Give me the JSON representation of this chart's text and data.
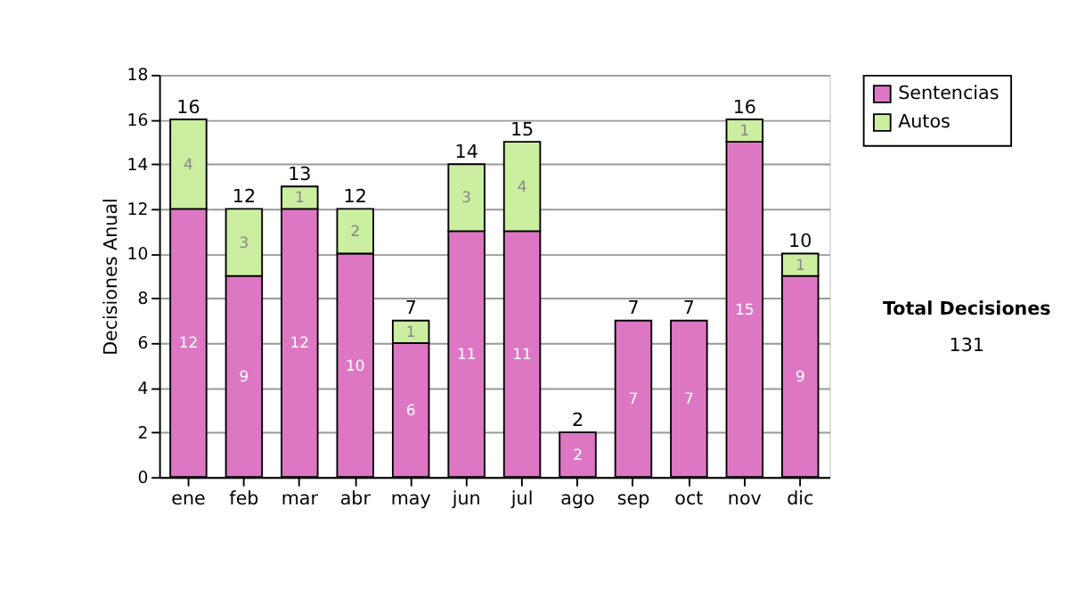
{
  "chart_data": {
    "type": "bar",
    "stacked": true,
    "ylabel": "Decisiones Anual",
    "categories": [
      "ene",
      "feb",
      "mar",
      "abr",
      "may",
      "jun",
      "jul",
      "ago",
      "sep",
      "oct",
      "nov",
      "dic"
    ],
    "series": [
      {
        "name": "Sentencias",
        "color": "#dd77c4",
        "values": [
          12,
          9,
          12,
          10,
          6,
          11,
          11,
          2,
          7,
          7,
          15,
          9
        ]
      },
      {
        "name": "Autos",
        "color": "#cceea0",
        "values": [
          4,
          3,
          1,
          2,
          1,
          3,
          4,
          null,
          null,
          null,
          1,
          1
        ]
      }
    ],
    "totals": [
      "16",
      "12",
      "13",
      "12",
      "7",
      "14",
      "15",
      "2",
      "7",
      "7",
      "16",
      "10"
    ],
    "data_labels": true,
    "ylim": [
      0,
      18
    ],
    "yticks": [
      0,
      2,
      4,
      6,
      8,
      10,
      12,
      14,
      16,
      18
    ],
    "grid": "y",
    "legend": "right",
    "annotations": [
      "Total Decisiones",
      "131"
    ]
  }
}
